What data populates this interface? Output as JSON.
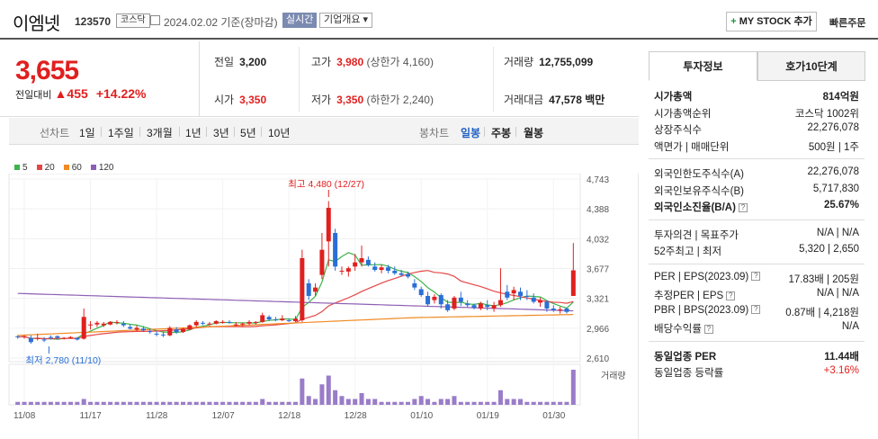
{
  "header": {
    "name": "이엠넷",
    "code": "123570",
    "market": "코스닥",
    "date": "2024.02.02 기준(장마감)",
    "realtime": "실시간",
    "company": "기업개요",
    "mystock": "MY STOCK 추가",
    "quick_order": "빠른주문"
  },
  "price": {
    "current": "3,655",
    "change_label": "전일대비",
    "change": "455",
    "rate": "+14.22%"
  },
  "quotes": {
    "prev_label": "전일",
    "prev": "3,200",
    "high_label": "고가",
    "high": "3,980",
    "upper_limit": "(상한가 4,160)",
    "volume_label": "거래량",
    "volume": "12,755,099",
    "open_label": "시가",
    "open": "3,350",
    "low_label": "저가",
    "low": "3,350",
    "lower_limit": "(하한가 2,240)",
    "amount_label": "거래대금",
    "amount": "47,578",
    "amount_unit": "백만"
  },
  "tabs": {
    "line_label": "선차트",
    "line": [
      "1일",
      "1주일",
      "3개월",
      "1년",
      "3년",
      "5년",
      "10년"
    ],
    "candle_label": "봉차트",
    "candle": [
      "일봉",
      "주봉",
      "월봉"
    ]
  },
  "legend": [
    {
      "label": "5",
      "color": "#3cb44b"
    },
    {
      "label": "20",
      "color": "#e64545"
    },
    {
      "label": "60",
      "color": "#f08a24"
    },
    {
      "label": "120",
      "color": "#8e5fb5"
    }
  ],
  "chart_data": {
    "type": "candlestick",
    "y_ticks": [
      "4,743",
      "4,388",
      "4,032",
      "3,677",
      "3,321",
      "2,966",
      "2,610"
    ],
    "x_ticks": [
      "11/08",
      "11/17",
      "11/28",
      "12/07",
      "12/18",
      "12/28",
      "01/10",
      "01/19",
      "01/30"
    ],
    "ylim": [
      2610,
      4743
    ],
    "high_annotation": "최고 4,480 (12/27)",
    "low_annotation": "최저 2,780 (11/10)",
    "volume_label": "거래량",
    "candles": [
      [
        2870,
        2880,
        2840,
        2860
      ],
      [
        2860,
        2880,
        2840,
        2870
      ],
      [
        2850,
        2880,
        2780,
        2800
      ],
      [
        2840,
        2900,
        2820,
        2850
      ],
      [
        2830,
        2860,
        2800,
        2820
      ],
      [
        2860,
        2880,
        2830,
        2850
      ],
      [
        2870,
        2880,
        2830,
        2850
      ],
      [
        2840,
        2860,
        2830,
        2850
      ],
      [
        2850,
        2870,
        2840,
        2860
      ],
      [
        2850,
        2860,
        2820,
        2830
      ],
      [
        2840,
        3200,
        2830,
        3100
      ],
      [
        3000,
        3050,
        2950,
        3010
      ],
      [
        3010,
        3050,
        2980,
        3030
      ],
      [
        3000,
        3040,
        2980,
        3020
      ],
      [
        3010,
        3050,
        3000,
        3040
      ],
      [
        3030,
        3060,
        3010,
        3040
      ],
      [
        3020,
        3050,
        2980,
        3000
      ],
      [
        2980,
        3010,
        2950,
        2960
      ],
      [
        2950,
        3000,
        2930,
        2970
      ],
      [
        2960,
        2990,
        2920,
        2940
      ],
      [
        2930,
        2960,
        2900,
        2920
      ],
      [
        2900,
        2930,
        2870,
        2890
      ],
      [
        2890,
        2920,
        2860,
        2880
      ],
      [
        2880,
        2990,
        2870,
        2970
      ],
      [
        2950,
        2980,
        2900,
        2920
      ],
      [
        2920,
        2970,
        2910,
        2960
      ],
      [
        2950,
        3010,
        2940,
        3000
      ],
      [
        3000,
        3060,
        2980,
        3040
      ],
      [
        3030,
        3050,
        3000,
        3020
      ],
      [
        3020,
        3040,
        3000,
        3020
      ],
      [
        3020,
        3060,
        3010,
        3050
      ],
      [
        3040,
        3060,
        3020,
        3040
      ],
      [
        3040,
        3060,
        3020,
        3030
      ],
      [
        3000,
        3040,
        2990,
        3010
      ],
      [
        3010,
        3030,
        2990,
        3020
      ],
      [
        3020,
        3060,
        3000,
        3040
      ],
      [
        3030,
        3050,
        3010,
        3040
      ],
      [
        3040,
        3150,
        3030,
        3120
      ],
      [
        3100,
        3120,
        3050,
        3070
      ],
      [
        3070,
        3100,
        3050,
        3060
      ],
      [
        3060,
        3120,
        3050,
        3080
      ],
      [
        3060,
        3080,
        3040,
        3050
      ],
      [
        3050,
        3110,
        3040,
        3080
      ],
      [
        3060,
        3900,
        3040,
        3800
      ],
      [
        3500,
        3550,
        3300,
        3350
      ],
      [
        3400,
        3500,
        3350,
        3450
      ],
      [
        3600,
        4100,
        3550,
        3900
      ],
      [
        4000,
        4480,
        3700,
        4400
      ],
      [
        4100,
        4150,
        3650,
        3700
      ],
      [
        3650,
        3700,
        3600,
        3650
      ],
      [
        3640,
        3700,
        3580,
        3680
      ],
      [
        3700,
        3850,
        3650,
        3750
      ],
      [
        3750,
        3950,
        3700,
        3800
      ],
      [
        3780,
        3820,
        3700,
        3720
      ],
      [
        3700,
        3750,
        3640,
        3660
      ],
      [
        3660,
        3720,
        3620,
        3690
      ],
      [
        3690,
        3720,
        3620,
        3650
      ],
      [
        3650,
        3700,
        3600,
        3620
      ],
      [
        3620,
        3660,
        3580,
        3600
      ],
      [
        3610,
        3640,
        3560,
        3580
      ],
      [
        3500,
        3550,
        3420,
        3450
      ],
      [
        3430,
        3460,
        3340,
        3360
      ],
      [
        3350,
        3400,
        3220,
        3250
      ],
      [
        3300,
        3370,
        3260,
        3340
      ],
      [
        3360,
        3380,
        3200,
        3250
      ],
      [
        3250,
        3300,
        3160,
        3180
      ],
      [
        3200,
        3350,
        3180,
        3330
      ],
      [
        3330,
        3400,
        3230,
        3280
      ],
      [
        3260,
        3300,
        3210,
        3240
      ],
      [
        3240,
        3260,
        3190,
        3210
      ],
      [
        3200,
        3280,
        3180,
        3260
      ],
      [
        3240,
        3300,
        3180,
        3220
      ],
      [
        3200,
        3280,
        3160,
        3240
      ],
      [
        3240,
        3680,
        3220,
        3300
      ],
      [
        3400,
        3480,
        3300,
        3330
      ],
      [
        3380,
        3460,
        3300,
        3420
      ],
      [
        3400,
        3450,
        3300,
        3350
      ],
      [
        3350,
        3420,
        3300,
        3340
      ],
      [
        3330,
        3380,
        3260,
        3280
      ],
      [
        3270,
        3330,
        3220,
        3300
      ],
      [
        3280,
        3300,
        3160,
        3200
      ],
      [
        3200,
        3240,
        3160,
        3180
      ],
      [
        3180,
        3220,
        3140,
        3190
      ],
      [
        3200,
        3210,
        3140,
        3160
      ],
      [
        3350,
        3980,
        3350,
        3655
      ]
    ],
    "volumes": [
      1,
      1,
      1,
      1,
      1,
      1,
      1,
      1,
      1,
      1,
      2,
      1,
      1,
      1,
      1,
      1,
      1,
      1,
      1,
      1,
      1,
      1,
      1,
      1,
      1,
      1,
      1,
      1,
      1,
      1,
      1,
      1,
      1,
      1,
      1,
      1,
      1,
      2,
      1,
      1,
      1,
      1,
      1,
      9,
      3,
      2,
      7,
      10,
      5,
      3,
      2,
      2,
      4,
      2,
      2,
      1,
      1,
      1,
      1,
      1,
      2,
      3,
      2,
      1,
      2,
      2,
      3,
      1,
      1,
      1,
      1,
      1,
      1,
      5,
      2,
      2,
      2,
      1,
      1,
      1,
      1,
      1,
      1,
      1,
      12
    ]
  },
  "side": {
    "tab_on": "투자정보",
    "tab_off": "호가10단계",
    "rows1": [
      [
        "시가총액",
        "814억원"
      ],
      [
        "시가총액순위",
        "코스닥 1002위"
      ],
      [
        "상장주식수",
        "22,276,078"
      ],
      [
        "액면가 | 매매단위",
        "500원 | 1주"
      ]
    ],
    "rows2": [
      [
        "외국인한도주식수(A)",
        "22,276,078"
      ],
      [
        "외국인보유주식수(B)",
        "5,717,830"
      ],
      [
        "외국인소진율(B/A)",
        "25.67%"
      ]
    ],
    "rows3": [
      [
        "투자의견 | 목표주가",
        "N/A | N/A"
      ],
      [
        "52주최고 | 최저",
        "5,320 | 2,650"
      ]
    ],
    "rows4": [
      [
        "PER | EPS(2023.09)",
        "17.83배 | 205원"
      ],
      [
        "추정PER | EPS",
        "N/A | N/A"
      ],
      [
        "PBR | BPS(2023.09)",
        "0.87배 | 4,218원"
      ],
      [
        "배당수익률",
        "N/A"
      ]
    ],
    "rows5": [
      [
        "동일업종 PER",
        "11.44배"
      ],
      [
        "동일업종 등락률",
        "+3.16%"
      ]
    ]
  }
}
